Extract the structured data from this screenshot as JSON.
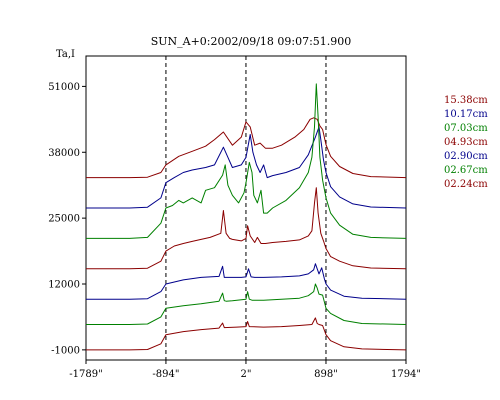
{
  "chart_data": {
    "type": "line",
    "title": "SUN_A+0:2002/09/18 09:07:51.900",
    "ylabel": "Ta,I",
    "xlabel": "",
    "x_tick_labels": [
      "-1789\"",
      "-894\"",
      "2\"",
      "898\"",
      "1794\""
    ],
    "x_tick_values": [
      -1789,
      -894,
      2,
      898,
      1794
    ],
    "y_tick_labels": [
      "51000",
      "38000",
      "25000",
      "12000",
      "-1000"
    ],
    "y_tick_values": [
      51000,
      38000,
      25000,
      12000,
      -1000
    ],
    "xlim": [
      -1789,
      1794
    ],
    "ylim": [
      -3000,
      57000
    ],
    "dashed_vlines": [
      -894,
      2,
      898
    ],
    "grid": false,
    "legend_position": "right",
    "series": [
      {
        "name": "15.38cm",
        "color": "#8b0000",
        "offset": 33000,
        "x": [
          -1789,
          -1300,
          -1100,
          -950,
          -894,
          -750,
          -600,
          -450,
          -350,
          -250,
          -150,
          -50,
          2,
          50,
          100,
          160,
          220,
          300,
          400,
          550,
          650,
          720,
          760,
          800,
          830,
          860,
          898,
          950,
          1050,
          1200,
          1400,
          1794
        ],
        "y": [
          0,
          0,
          80,
          1000,
          2500,
          4200,
          5200,
          6200,
          7500,
          9000,
          6400,
          8000,
          11000,
          10000,
          6400,
          6800,
          5800,
          5800,
          6400,
          8000,
          9500,
          11500,
          11800,
          11500,
          10200,
          9500,
          6500,
          4200,
          2200,
          800,
          200,
          0
        ]
      },
      {
        "name": "10.17cm",
        "color": "#00008b",
        "offset": 27000,
        "x": [
          -1789,
          -1300,
          -1100,
          -950,
          -894,
          -800,
          -700,
          -600,
          -450,
          -350,
          -250,
          -200,
          -150,
          -50,
          2,
          50,
          80,
          120,
          160,
          200,
          240,
          300,
          450,
          600,
          700,
          780,
          820,
          840,
          870,
          898,
          950,
          1050,
          1200,
          1400,
          1794
        ],
        "y": [
          0,
          0,
          150,
          2000,
          5000,
          6000,
          7000,
          7500,
          8000,
          8500,
          12000,
          10000,
          8000,
          8500,
          10000,
          14500,
          11000,
          8500,
          7000,
          8500,
          6000,
          6400,
          7000,
          8000,
          10500,
          14000,
          16000,
          13500,
          9500,
          7000,
          4200,
          2200,
          800,
          200,
          0
        ]
      },
      {
        "name": "07.03cm",
        "color": "#008000",
        "offset": 21000,
        "x": [
          -1789,
          -1300,
          -1100,
          -950,
          -894,
          -820,
          -750,
          -700,
          -600,
          -500,
          -450,
          -350,
          -260,
          -230,
          -200,
          -150,
          -80,
          -20,
          2,
          40,
          70,
          90,
          130,
          170,
          200,
          240,
          300,
          450,
          600,
          700,
          740,
          770,
          790,
          810,
          830,
          860,
          898,
          950,
          1050,
          1200,
          1400,
          1794
        ],
        "y": [
          0,
          0,
          200,
          3000,
          6000,
          6500,
          7500,
          7000,
          8000,
          7000,
          9500,
          10000,
          12500,
          14500,
          10500,
          8500,
          7000,
          9000,
          11000,
          15000,
          13000,
          8500,
          7000,
          9500,
          5000,
          5000,
          6000,
          7500,
          10000,
          13000,
          16000,
          22000,
          30500,
          24000,
          16000,
          11500,
          8000,
          5000,
          2600,
          800,
          200,
          0
        ]
      },
      {
        "name": "04.93cm",
        "color": "#8b0000",
        "offset": 15000,
        "x": [
          -1789,
          -1300,
          -1100,
          -950,
          -894,
          -800,
          -700,
          -600,
          -500,
          -400,
          -280,
          -250,
          -220,
          -180,
          -150,
          -50,
          2,
          20,
          50,
          100,
          130,
          170,
          220,
          300,
          450,
          600,
          700,
          740,
          770,
          790,
          810,
          840,
          870,
          898,
          950,
          1050,
          1200,
          1400,
          1794
        ],
        "y": [
          0,
          0,
          120,
          1500,
          3500,
          4500,
          5000,
          5400,
          5800,
          6200,
          7000,
          11500,
          7000,
          6000,
          5800,
          5500,
          6000,
          8500,
          6500,
          5200,
          6200,
          5000,
          5000,
          5200,
          5400,
          5700,
          6500,
          7500,
          13000,
          16000,
          11000,
          7000,
          5500,
          4000,
          2400,
          1500,
          600,
          150,
          0
        ]
      },
      {
        "name": "02.90cm",
        "color": "#00008b",
        "offset": 9000,
        "x": [
          -1789,
          -1300,
          -1100,
          -950,
          -894,
          -700,
          -500,
          -300,
          -260,
          -240,
          -220,
          -150,
          -50,
          2,
          30,
          60,
          100,
          200,
          400,
          600,
          700,
          760,
          780,
          800,
          820,
          850,
          880,
          898,
          950,
          1100,
          1300,
          1794
        ],
        "y": [
          0,
          0,
          100,
          1500,
          3000,
          3800,
          4300,
          4500,
          6500,
          4300,
          4300,
          4300,
          4300,
          4400,
          6000,
          4400,
          4300,
          4300,
          4400,
          4600,
          5000,
          5800,
          7000,
          6000,
          5000,
          6200,
          4000,
          3000,
          1800,
          600,
          200,
          0
        ]
      },
      {
        "name": "02.67cm",
        "color": "#008000",
        "offset": 4000,
        "x": [
          -1789,
          -1300,
          -1100,
          -950,
          -894,
          -700,
          -500,
          -300,
          -260,
          -240,
          -220,
          -150,
          2,
          20,
          40,
          70,
          200,
          400,
          600,
          700,
          760,
          780,
          800,
          820,
          860,
          898,
          950,
          1100,
          1300,
          1794
        ],
        "y": [
          0,
          0,
          100,
          1500,
          3200,
          3700,
          4100,
          4600,
          6200,
          4700,
          4600,
          4700,
          5000,
          6500,
          5000,
          4800,
          4800,
          5000,
          5200,
          5700,
          6500,
          8000,
          7200,
          6000,
          5800,
          3200,
          2200,
          800,
          200,
          0
        ]
      },
      {
        "name": "02.24cm",
        "color": "#8b0000",
        "offset": -1000,
        "x": [
          -1789,
          -1300,
          -1100,
          -950,
          -894,
          -700,
          -500,
          -300,
          -260,
          -240,
          -100,
          2,
          20,
          40,
          200,
          400,
          600,
          740,
          780,
          800,
          820,
          860,
          898,
          950,
          1100,
          1300,
          1794
        ],
        "y": [
          0,
          0,
          80,
          1200,
          3000,
          3600,
          4000,
          4300,
          5300,
          4400,
          4500,
          4600,
          5600,
          4600,
          4500,
          4600,
          4800,
          5000,
          6300,
          5200,
          5000,
          4800,
          3000,
          1800,
          600,
          200,
          0
        ]
      }
    ]
  }
}
